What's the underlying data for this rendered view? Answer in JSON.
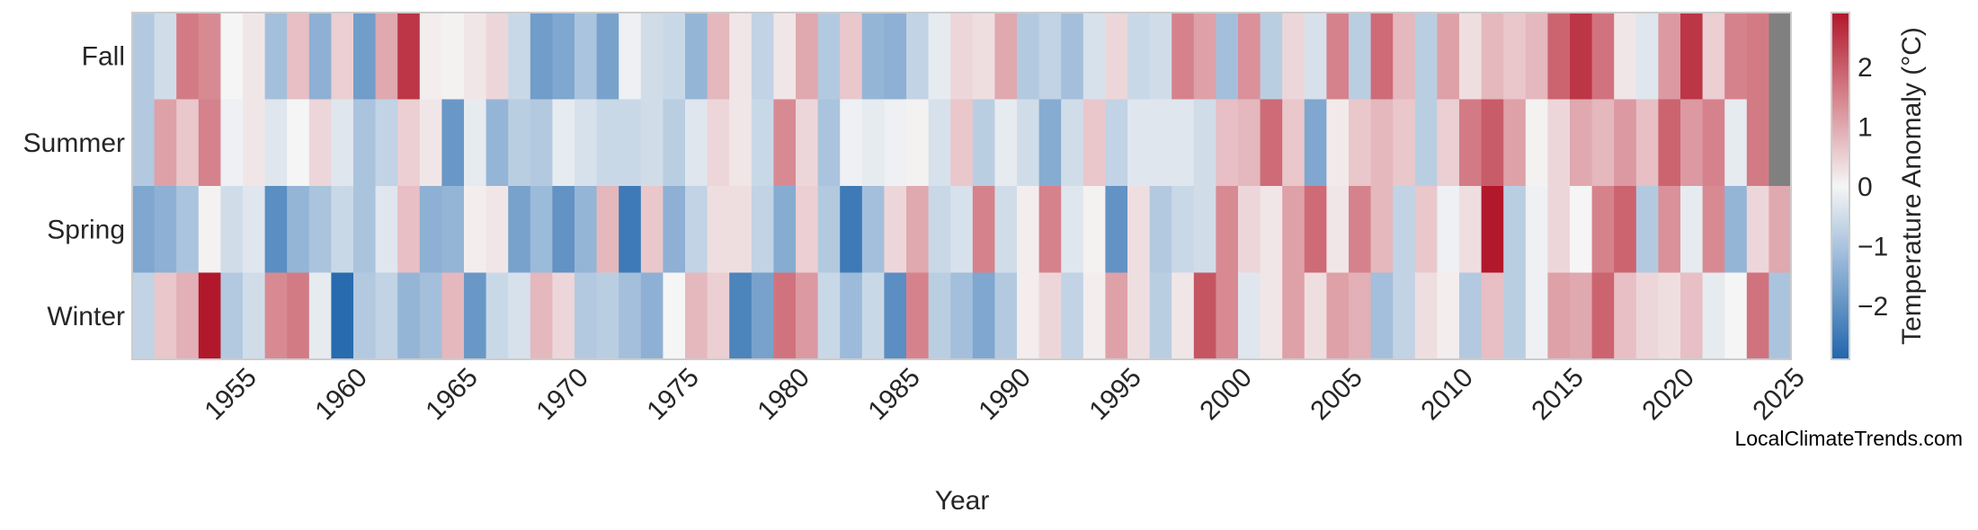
{
  "chart_data": {
    "type": "heatmap",
    "xlabel": "Year",
    "ylabel": "",
    "colorbar_label": "Temperature Anomaly (°C)",
    "colorbar_range": [
      -2.9,
      2.9
    ],
    "colorbar_ticks": [
      "−2",
      "−1",
      "0",
      "1",
      "2"
    ],
    "colorbar_tick_values": [
      -2,
      -1,
      0,
      1,
      2
    ],
    "colormap": {
      "low": "#2166ac",
      "mid_low": "#8aaed3",
      "mid": "#f5f5f5",
      "mid_high": "#d7868f",
      "high": "#b2182b",
      "missing": "#808080"
    },
    "x_start_year": 1951,
    "x_end_year": 2025,
    "x_tick_labels": [
      "1955",
      "1960",
      "1965",
      "1970",
      "1975",
      "1980",
      "1985",
      "1990",
      "1995",
      "2000",
      "2005",
      "2010",
      "2015",
      "2020",
      "2025"
    ],
    "rows": [
      "Fall",
      "Summer",
      "Spring",
      "Winter"
    ],
    "series": [
      {
        "name": "Fall",
        "values": [
          -0.9,
          -0.5,
          1.6,
          1.4,
          0.0,
          0.2,
          -1.1,
          0.7,
          -1.4,
          0.5,
          -1.8,
          1.0,
          2.5,
          0.1,
          0.05,
          0.2,
          0.4,
          -0.6,
          -1.8,
          -1.6,
          -1.0,
          -1.7,
          -0.1,
          -0.5,
          -0.6,
          -1.3,
          0.8,
          0.2,
          -0.7,
          0.2,
          1.0,
          -0.9,
          0.6,
          -1.3,
          -1.4,
          -0.7,
          -0.2,
          0.4,
          0.3,
          1.0,
          -0.9,
          -0.7,
          -1.1,
          -0.4,
          0.4,
          -0.6,
          -0.5,
          1.5,
          1.1,
          -1.1,
          1.3,
          -0.8,
          0.4,
          -0.4,
          1.5,
          -0.8,
          1.8,
          0.8,
          -0.8,
          1.1,
          0.3,
          0.8,
          0.6,
          0.8,
          1.9,
          2.5,
          1.7,
          0.2,
          -0.3,
          1.2,
          2.5,
          0.5,
          1.5,
          1.6,
          null
        ]
      },
      {
        "name": "Summer",
        "values": [
          -0.9,
          1.1,
          0.6,
          1.5,
          -0.1,
          0.2,
          -0.3,
          0.0,
          0.4,
          -0.3,
          -1.0,
          -0.7,
          0.5,
          0.2,
          -1.9,
          -0.2,
          -1.3,
          -0.8,
          -0.9,
          -0.2,
          -0.4,
          -0.6,
          -0.6,
          -0.5,
          -0.8,
          -0.3,
          0.4,
          0.2,
          -0.6,
          1.4,
          0.4,
          -1.0,
          -0.1,
          -0.2,
          -0.1,
          0.05,
          -0.4,
          0.6,
          -0.8,
          -0.2,
          -0.5,
          -1.5,
          -0.5,
          0.6,
          -0.7,
          -0.3,
          -0.3,
          -0.3,
          -0.5,
          0.7,
          0.8,
          1.8,
          0.6,
          -1.6,
          0.15,
          0.6,
          0.8,
          0.6,
          -0.8,
          0.5,
          1.6,
          2.0,
          1.1,
          0.05,
          0.4,
          1.0,
          0.8,
          1.2,
          0.7,
          1.9,
          1.2,
          1.5,
          -0.2,
          1.6,
          null
        ]
      },
      {
        "name": "Spring",
        "values": [
          -1.6,
          -1.4,
          -1.0,
          0.05,
          -0.5,
          -0.3,
          -2.1,
          -1.3,
          -1.0,
          -0.6,
          -1.0,
          -0.3,
          0.7,
          -1.4,
          -1.3,
          0.1,
          0.2,
          -1.7,
          -1.2,
          -2.0,
          -1.3,
          0.8,
          -2.5,
          0.6,
          -1.4,
          -0.7,
          0.3,
          0.3,
          -0.7,
          -1.5,
          0.5,
          -0.9,
          -2.5,
          -1.1,
          0.4,
          1.0,
          -0.6,
          -0.4,
          1.5,
          -0.5,
          0.1,
          1.5,
          -0.3,
          0.05,
          -2.0,
          0.3,
          -0.9,
          -0.6,
          -0.5,
          1.4,
          0.4,
          0.2,
          1.1,
          1.8,
          0.2,
          1.5,
          0.8,
          -0.7,
          0.6,
          -0.1,
          0.3,
          2.9,
          -0.8,
          -0.1,
          0.4,
          0.0,
          1.5,
          1.9,
          -0.9,
          1.3,
          -0.2,
          1.4,
          -1.3,
          0.4,
          1.0
        ]
      },
      {
        "name": "Winter",
        "values": [
          -0.7,
          0.6,
          0.9,
          2.9,
          -0.9,
          -0.5,
          1.4,
          1.6,
          -0.2,
          -2.8,
          -0.9,
          -0.7,
          -1.3,
          -1.1,
          0.8,
          -1.9,
          -0.6,
          -0.4,
          0.8,
          0.4,
          -0.9,
          -0.8,
          -1.1,
          -1.4,
          0.0,
          0.8,
          0.5,
          -2.3,
          -1.7,
          1.7,
          1.2,
          -0.6,
          -1.2,
          -0.6,
          -2.1,
          1.5,
          -0.8,
          -1.1,
          -1.6,
          -0.9,
          0.1,
          0.4,
          -0.7,
          0.1,
          1.1,
          0.3,
          -0.8,
          0.2,
          2.1,
          1.4,
          -0.3,
          0.2,
          1.1,
          0.3,
          1.1,
          0.9,
          -1.1,
          -0.7,
          0.3,
          0.1,
          -0.9,
          0.7,
          -0.8,
          -0.1,
          1.1,
          1.0,
          1.9,
          0.7,
          0.4,
          0.3,
          0.7,
          -0.2,
          0.0,
          1.7,
          -1.0
        ]
      }
    ]
  },
  "watermark": "LocalClimateTrends.com"
}
